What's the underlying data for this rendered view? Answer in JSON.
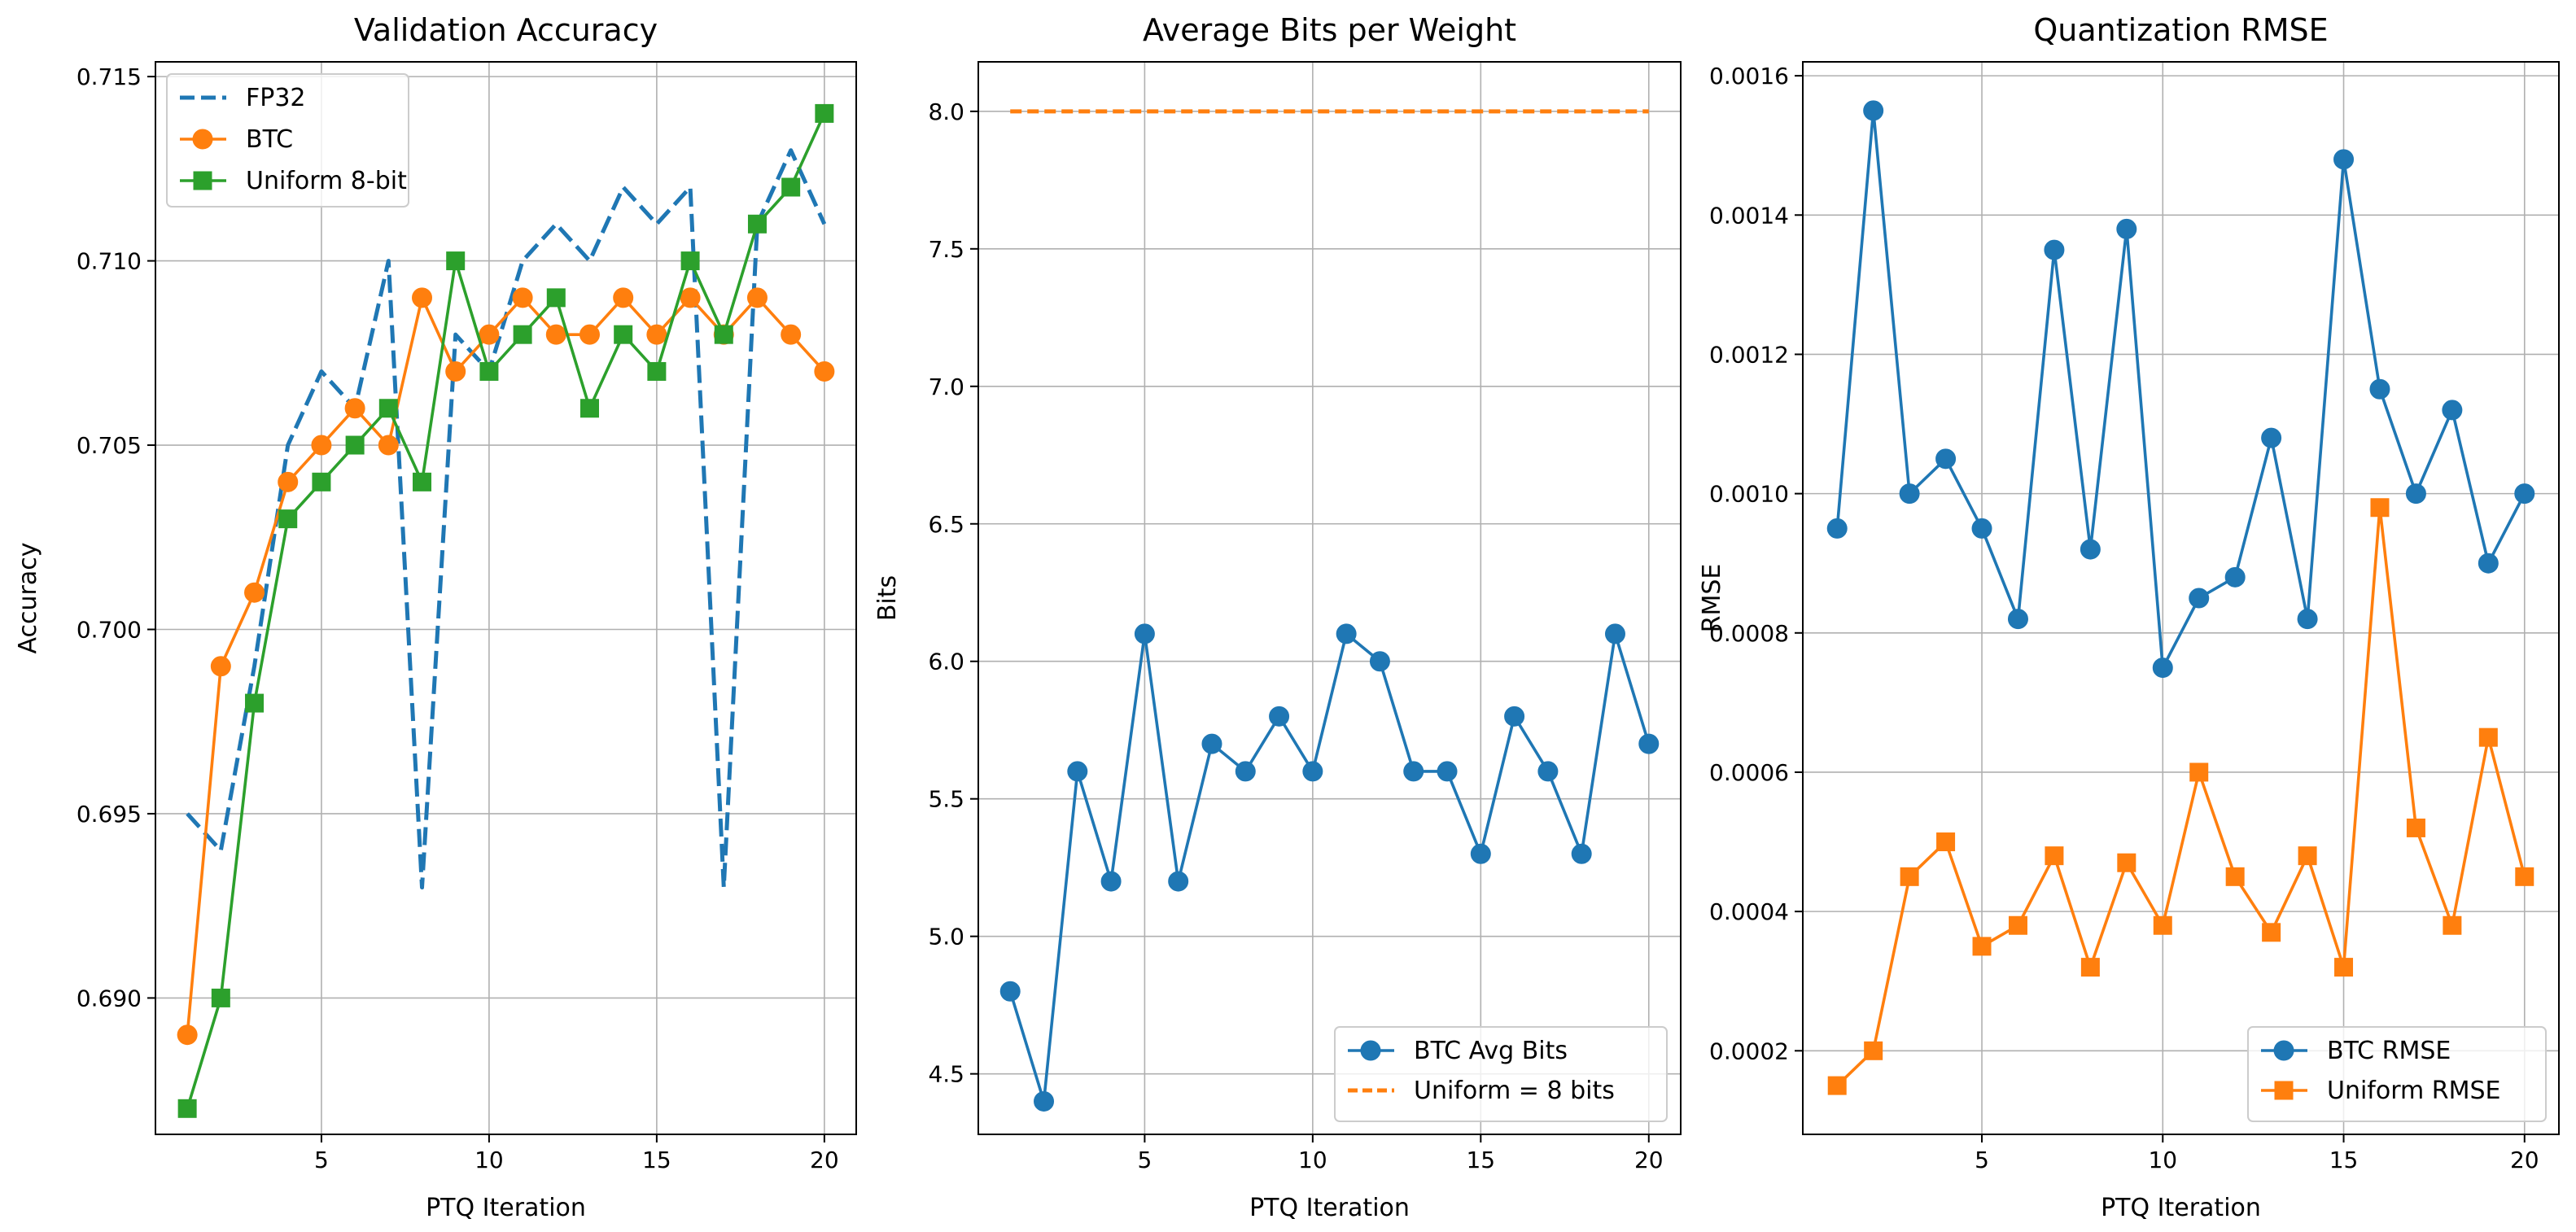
{
  "chart_data": [
    {
      "type": "line",
      "title": "Validation Accuracy",
      "xlabel": "PTQ Iteration",
      "ylabel": "Accuracy",
      "xlim": [
        0.05,
        20.95
      ],
      "ylim": [
        0.6863,
        0.7154
      ],
      "xticks": [
        5,
        10,
        15,
        20
      ],
      "xtick_labels": [
        "5",
        "10",
        "15",
        "20"
      ],
      "yticks": [
        0.69,
        0.695,
        0.7,
        0.705,
        0.71,
        0.715
      ],
      "ytick_labels": [
        "0.690",
        "0.695",
        "0.700",
        "0.705",
        "0.710",
        "0.715"
      ],
      "grid": true,
      "legend_position": "upper-left",
      "x": [
        1,
        2,
        3,
        4,
        5,
        6,
        7,
        8,
        9,
        10,
        11,
        12,
        13,
        14,
        15,
        16,
        17,
        18,
        19,
        20
      ],
      "series": [
        {
          "name": "FP32",
          "color": "#1f77b4",
          "style": "dashed",
          "marker": "none",
          "values": [
            0.695,
            0.694,
            0.699,
            0.705,
            0.707,
            0.706,
            0.71,
            0.693,
            0.708,
            0.707,
            0.71,
            0.711,
            0.71,
            0.712,
            0.711,
            0.712,
            0.693,
            0.711,
            0.713,
            0.711
          ]
        },
        {
          "name": "BTC",
          "color": "#ff7f0e",
          "style": "solid",
          "marker": "circle",
          "values": [
            0.689,
            0.699,
            0.701,
            0.704,
            0.705,
            0.706,
            0.705,
            0.709,
            0.707,
            0.708,
            0.709,
            0.708,
            0.708,
            0.709,
            0.708,
            0.709,
            0.708,
            0.709,
            0.708,
            0.707
          ]
        },
        {
          "name": "Uniform 8-bit",
          "color": "#2ca02c",
          "style": "solid",
          "marker": "square",
          "values": [
            0.687,
            0.69,
            0.698,
            0.703,
            0.704,
            0.705,
            0.706,
            0.704,
            0.71,
            0.707,
            0.708,
            0.709,
            0.706,
            0.708,
            0.707,
            0.71,
            0.708,
            0.711,
            0.712,
            0.714
          ]
        }
      ]
    },
    {
      "type": "line",
      "title": "Average Bits per Weight",
      "xlabel": "PTQ Iteration",
      "ylabel": "Bits",
      "xlim": [
        0.05,
        20.95
      ],
      "ylim": [
        4.28,
        8.18
      ],
      "xticks": [
        5,
        10,
        15,
        20
      ],
      "xtick_labels": [
        "5",
        "10",
        "15",
        "20"
      ],
      "yticks": [
        4.5,
        5.0,
        5.5,
        6.0,
        6.5,
        7.0,
        7.5,
        8.0
      ],
      "ytick_labels": [
        "4.5",
        "5.0",
        "5.5",
        "6.0",
        "6.5",
        "7.0",
        "7.5",
        "8.0"
      ],
      "grid": true,
      "legend_position": "lower-right",
      "x": [
        1,
        2,
        3,
        4,
        5,
        6,
        7,
        8,
        9,
        10,
        11,
        12,
        13,
        14,
        15,
        16,
        17,
        18,
        19,
        20
      ],
      "series": [
        {
          "name": "BTC Avg Bits",
          "color": "#1f77b4",
          "style": "solid",
          "marker": "circle",
          "values": [
            4.8,
            4.4,
            5.6,
            5.2,
            6.1,
            5.2,
            5.7,
            5.6,
            5.8,
            5.6,
            6.1,
            6.0,
            5.6,
            5.6,
            5.3,
            5.8,
            5.6,
            5.3,
            6.1,
            5.7
          ]
        },
        {
          "name": "Uniform = 8 bits",
          "color": "#ff7f0e",
          "style": "dashed",
          "marker": "none",
          "values": [
            8,
            8,
            8,
            8,
            8,
            8,
            8,
            8,
            8,
            8,
            8,
            8,
            8,
            8,
            8,
            8,
            8,
            8,
            8,
            8
          ]
        }
      ]
    },
    {
      "type": "line",
      "title": "Quantization RMSE",
      "xlabel": "PTQ Iteration",
      "ylabel": "RMSE",
      "xlim": [
        0.05,
        20.95
      ],
      "ylim": [
        8e-05,
        0.00162
      ],
      "xticks": [
        5,
        10,
        15,
        20
      ],
      "xtick_labels": [
        "5",
        "10",
        "15",
        "20"
      ],
      "yticks": [
        0.0002,
        0.0004,
        0.0006,
        0.0008,
        0.001,
        0.0012,
        0.0014,
        0.0016
      ],
      "ytick_labels": [
        "0.0002",
        "0.0004",
        "0.0006",
        "0.0008",
        "0.0010",
        "0.0012",
        "0.0014",
        "0.0016"
      ],
      "grid": true,
      "legend_position": "lower-right",
      "x": [
        1,
        2,
        3,
        4,
        5,
        6,
        7,
        8,
        9,
        10,
        11,
        12,
        13,
        14,
        15,
        16,
        17,
        18,
        19,
        20
      ],
      "series": [
        {
          "name": "BTC RMSE",
          "color": "#1f77b4",
          "style": "solid",
          "marker": "circle",
          "values": [
            0.00095,
            0.00155,
            0.001,
            0.00105,
            0.00095,
            0.00082,
            0.00135,
            0.00092,
            0.00138,
            0.00075,
            0.00085,
            0.00088,
            0.00108,
            0.00082,
            0.00148,
            0.00115,
            0.001,
            0.00112,
            0.0009,
            0.001
          ]
        },
        {
          "name": "Uniform RMSE",
          "color": "#ff7f0e",
          "style": "solid",
          "marker": "square",
          "values": [
            0.00015,
            0.0002,
            0.00045,
            0.0005,
            0.00035,
            0.00038,
            0.00048,
            0.00032,
            0.00047,
            0.00038,
            0.0006,
            0.00045,
            0.00037,
            0.00048,
            0.00032,
            0.00098,
            0.00052,
            0.00038,
            0.00065,
            0.00045
          ]
        }
      ]
    }
  ]
}
